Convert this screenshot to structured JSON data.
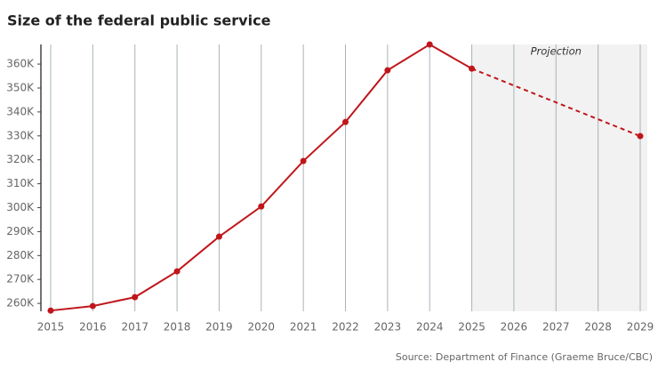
{
  "chart_data": {
    "type": "line",
    "title": "Size of the federal public service",
    "source": "Source: Department of Finance (Graeme Bruce/CBC)",
    "x": [
      2015,
      2016,
      2017,
      2018,
      2019,
      2020,
      2021,
      2022,
      2023,
      2024,
      2025,
      2029
    ],
    "series": [
      {
        "color": "#c0161b",
        "values": [
          257000,
          258900,
          262600,
          273400,
          287900,
          300500,
          319500,
          335800,
          357400,
          368200,
          358100,
          329900
        ]
      }
    ],
    "projection": {
      "label": "Projection",
      "xlim": [
        2025,
        2029
      ]
    },
    "xlim": [
      2015,
      2029
    ],
    "xticks": [
      2015,
      2016,
      2017,
      2018,
      2019,
      2020,
      2021,
      2022,
      2023,
      2024,
      2025,
      2026,
      2027,
      2028,
      2029
    ],
    "ylim": [
      256700,
      368200
    ],
    "yticks": [
      {
        "value": 260000,
        "label": "260K"
      },
      {
        "value": 270000,
        "label": "270K"
      },
      {
        "value": 280000,
        "label": "280K"
      },
      {
        "value": 290000,
        "label": "290K"
      },
      {
        "value": 300000,
        "label": "300K"
      },
      {
        "value": 310000,
        "label": "310K"
      },
      {
        "value": 320000,
        "label": "320K"
      },
      {
        "value": 330000,
        "label": "330K"
      },
      {
        "value": 340000,
        "label": "340K"
      },
      {
        "value": 350000,
        "label": "350K"
      },
      {
        "value": 360000,
        "label": "360K"
      }
    ],
    "grid": "x"
  }
}
